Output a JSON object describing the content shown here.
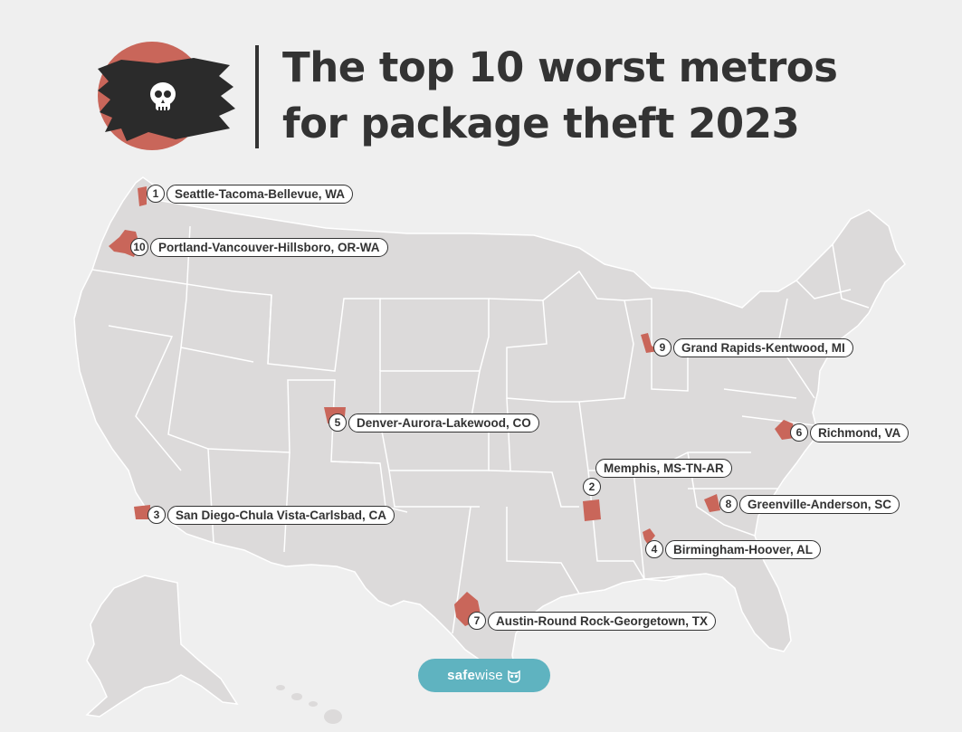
{
  "title": {
    "line1": "The top 10 worst metros",
    "line2": "for package theft 2023"
  },
  "brand": {
    "name_bold": "safe",
    "name_regular": "wise",
    "icon": "owl-icon",
    "color": "#5fb3c0"
  },
  "colors": {
    "background": "#efefef",
    "map_fill": "#dcdada",
    "state_border": "#ffffff",
    "metro_fill": "#c9665a",
    "text": "#333333"
  },
  "metros": [
    {
      "rank": "1",
      "name": "Seattle-Tacoma-Bellevue, WA"
    },
    {
      "rank": "2",
      "name": "Memphis, MS-TN-AR"
    },
    {
      "rank": "3",
      "name": "San Diego-Chula Vista-Carlsbad, CA"
    },
    {
      "rank": "4",
      "name": "Birmingham-Hoover, AL"
    },
    {
      "rank": "5",
      "name": "Denver-Aurora-Lakewood, CO"
    },
    {
      "rank": "6",
      "name": "Richmond, VA"
    },
    {
      "rank": "7",
      "name": "Austin-Round Rock-Georgetown, TX"
    },
    {
      "rank": "8",
      "name": "Greenville-Anderson, SC"
    },
    {
      "rank": "9",
      "name": "Grand Rapids-Kentwood, MI"
    },
    {
      "rank": "10",
      "name": "Portland-Vancouver-Hillsboro, OR-WA"
    }
  ]
}
